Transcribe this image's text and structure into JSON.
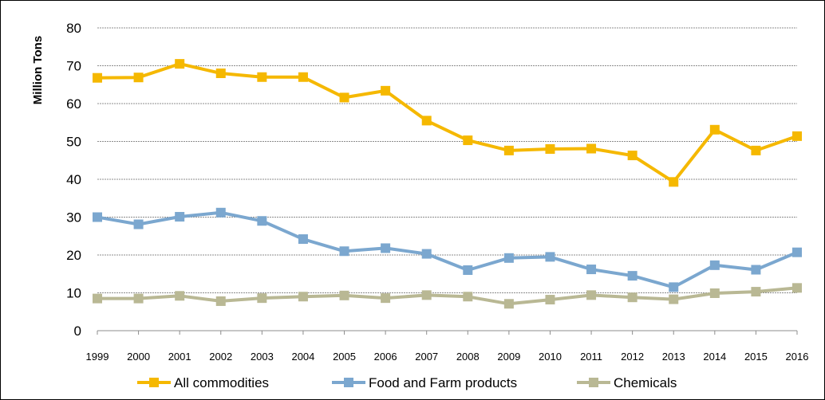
{
  "chart_data": {
    "type": "line",
    "ylabel": "Million Tons",
    "xlabel": "",
    "ylim": [
      0,
      80
    ],
    "yticks": [
      0,
      10,
      20,
      30,
      40,
      50,
      60,
      70,
      80
    ],
    "grid": "horizontal",
    "legend_position": "bottom",
    "x": [
      "1999",
      "2000",
      "2001",
      "2002",
      "2003",
      "2004",
      "2005",
      "2006",
      "2007",
      "2008",
      "2009",
      "2010",
      "2011",
      "2012",
      "2013",
      "2014",
      "2015",
      "2016"
    ],
    "series": [
      {
        "name": "All commodities",
        "color": "#F5B800",
        "values": [
          66.8,
          66.9,
          70.5,
          68.0,
          67.0,
          67.0,
          61.6,
          63.4,
          55.5,
          50.3,
          47.6,
          48.0,
          48.1,
          46.3,
          39.3,
          53.1,
          47.6,
          51.4
        ]
      },
      {
        "name": "Food and Farm products",
        "color": "#7BA7CF",
        "values": [
          30.0,
          28.1,
          30.1,
          31.2,
          29.0,
          24.2,
          21.0,
          21.8,
          20.3,
          16.0,
          19.2,
          19.5,
          16.2,
          14.5,
          11.5,
          17.3,
          16.1,
          20.7
        ]
      },
      {
        "name": "Chemicals",
        "color": "#B9B894",
        "values": [
          8.5,
          8.5,
          9.2,
          7.8,
          8.6,
          9.0,
          9.3,
          8.6,
          9.4,
          9.0,
          7.1,
          8.2,
          9.4,
          8.8,
          8.3,
          9.9,
          10.3,
          11.3
        ]
      }
    ]
  }
}
